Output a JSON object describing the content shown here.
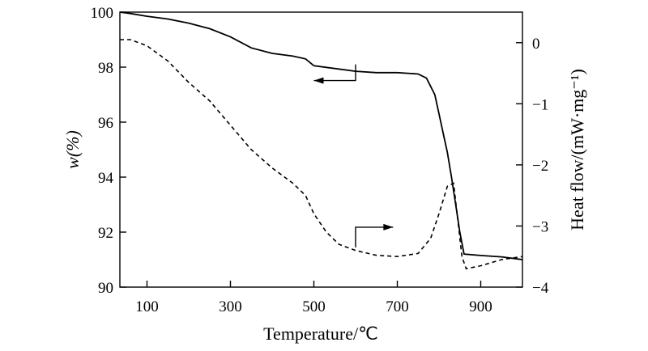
{
  "chart_data": {
    "type": "line",
    "xlabel": "Temperature/℃",
    "ylabel_left": "w(%)",
    "ylabel_right": "Heat flow/(mW·mg⁻¹)",
    "xlim": [
      35,
      1000
    ],
    "ylim_left": [
      90,
      100
    ],
    "ylim_right": [
      -4,
      0.5
    ],
    "xticks": [
      100,
      300,
      500,
      700,
      900
    ],
    "yticks_left": [
      90,
      92,
      94,
      96,
      98,
      100
    ],
    "yticks_right": [
      -4,
      -3,
      -2,
      -1,
      0
    ],
    "grid": false,
    "series": [
      {
        "axis": "left",
        "style": "solid",
        "x": [
          35,
          60,
          100,
          150,
          200,
          250,
          300,
          350,
          400,
          450,
          480,
          500,
          550,
          600,
          650,
          700,
          750,
          770,
          790,
          800,
          810,
          820,
          830,
          840,
          850,
          860,
          900,
          950,
          1000
        ],
        "y": [
          100.0,
          99.95,
          99.85,
          99.75,
          99.6,
          99.4,
          99.1,
          98.7,
          98.5,
          98.4,
          98.3,
          98.05,
          97.95,
          97.85,
          97.8,
          97.8,
          97.75,
          97.6,
          97.0,
          96.3,
          95.6,
          94.9,
          94.0,
          93.0,
          92.0,
          91.2,
          91.15,
          91.1,
          91.0
        ],
        "y_right_units": false
      },
      {
        "axis": "right",
        "style": "dashed",
        "x": [
          35,
          60,
          100,
          150,
          200,
          250,
          300,
          350,
          400,
          450,
          480,
          500,
          530,
          560,
          600,
          650,
          700,
          750,
          780,
          800,
          820,
          835,
          845,
          855,
          865,
          900,
          950,
          1000
        ],
        "y": [
          0.05,
          0.05,
          -0.05,
          -0.3,
          -0.65,
          -0.95,
          -1.35,
          -1.75,
          -2.05,
          -2.3,
          -2.5,
          -2.8,
          -3.1,
          -3.3,
          -3.4,
          -3.48,
          -3.5,
          -3.45,
          -3.2,
          -2.8,
          -2.35,
          -2.3,
          -2.9,
          -3.5,
          -3.7,
          -3.65,
          -3.55,
          -3.5
        ]
      }
    ],
    "annotations": [
      {
        "type": "arrow",
        "points_to": "left-axis",
        "from_x": 600,
        "from_y_left": 98.1,
        "to_x": 500,
        "label": ""
      },
      {
        "type": "arrow",
        "points_to": "right-axis",
        "from_x": 600,
        "from_y_right": -3.35,
        "to_x": 690,
        "label": ""
      }
    ]
  }
}
